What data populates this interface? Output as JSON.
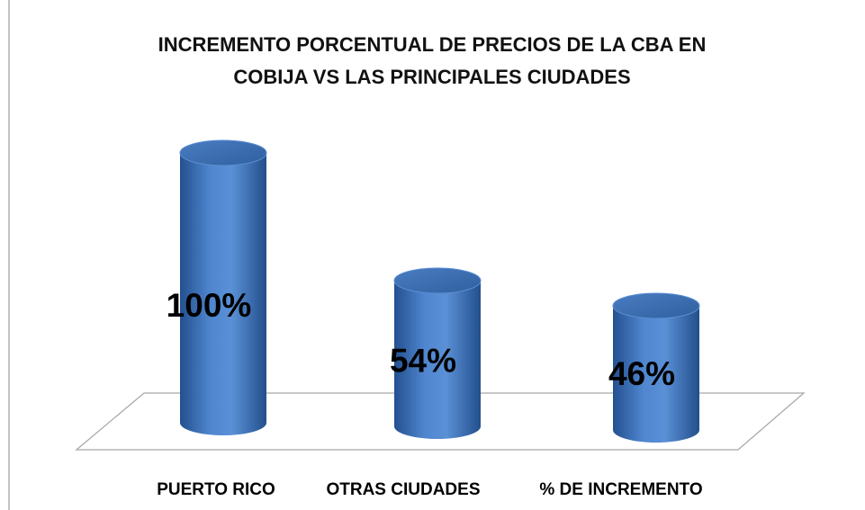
{
  "chart_data": {
    "type": "bar",
    "title": "INCREMENTO PORCENTUAL DE PRECIOS DE LA CBA EN COBIJA VS LAS PRINCIPALES CIUDADES",
    "categories": [
      "PUERTO RICO",
      "OTRAS CIUDADES",
      "% DE INCREMENTO"
    ],
    "values": [
      100,
      54,
      46
    ],
    "value_labels": [
      "100%",
      "54%",
      "46%"
    ],
    "color": "#3d6fb6"
  }
}
